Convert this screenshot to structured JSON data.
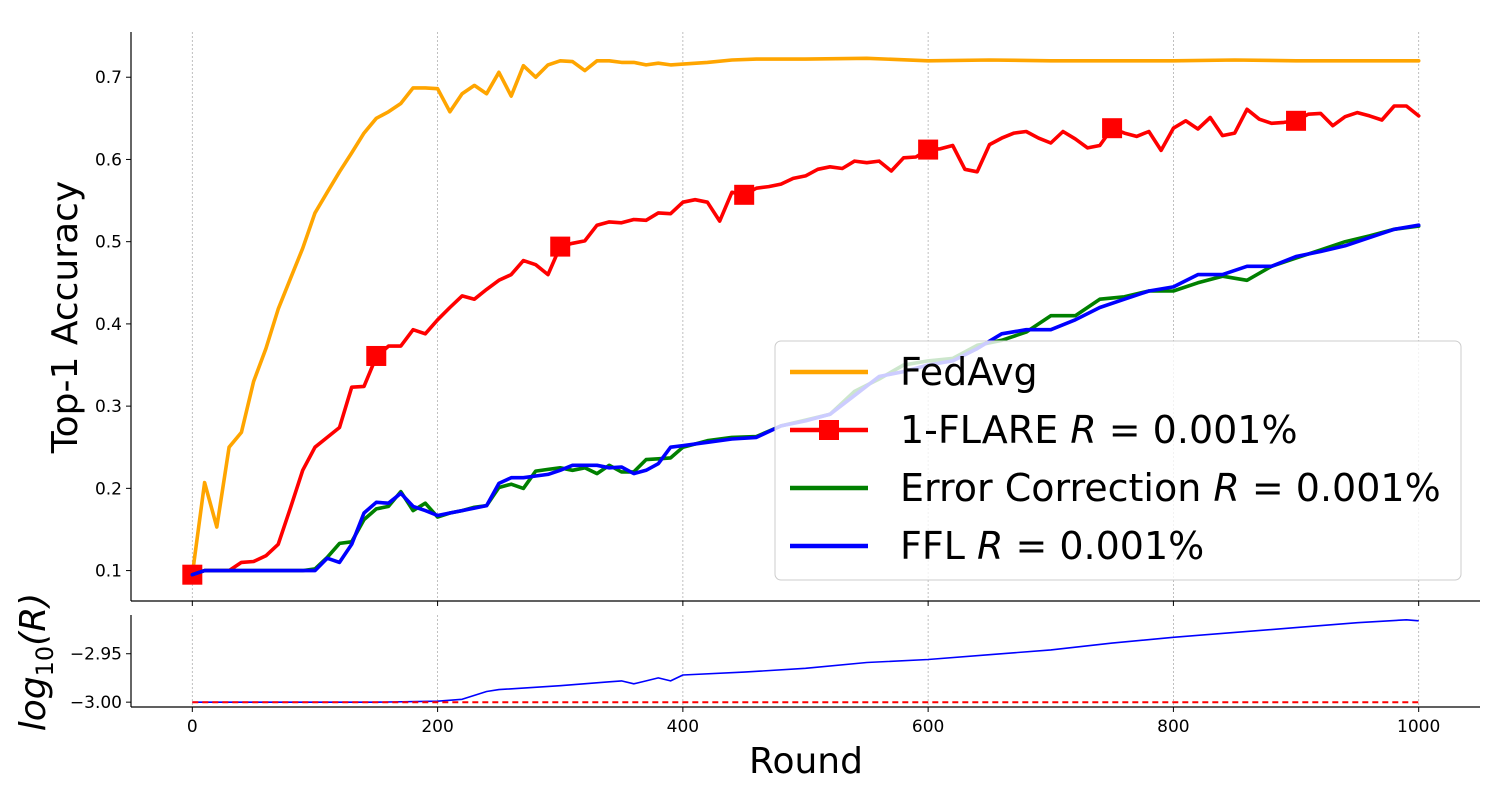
{
  "chart_data": [
    {
      "type": "line",
      "panel": "top",
      "title": "",
      "xlabel": "",
      "ylabel": "Top-1 Accuracy",
      "xlim": [
        -50,
        1050
      ],
      "ylim": [
        0.063,
        0.755
      ],
      "xticks": [
        0,
        200,
        400,
        600,
        800,
        1000
      ],
      "yticks": [
        0.1,
        0.2,
        0.3,
        0.4,
        0.5,
        0.6,
        0.7
      ],
      "ytick_labels": [
        "0.1",
        "0.2",
        "0.3",
        "0.4",
        "0.5",
        "0.6",
        "0.7"
      ],
      "grid": "vertical",
      "legend_position": "lower-right",
      "series": [
        {
          "name": "FedAvg",
          "color": "#FFA500",
          "x": [
            0,
            10,
            20,
            30,
            40,
            50,
            60,
            70,
            80,
            90,
            100,
            110,
            120,
            130,
            140,
            150,
            160,
            170,
            180,
            190,
            200,
            210,
            220,
            230,
            240,
            250,
            260,
            270,
            280,
            290,
            300,
            310,
            320,
            330,
            340,
            350,
            360,
            370,
            380,
            390,
            400,
            420,
            440,
            460,
            480,
            500,
            550,
            600,
            650,
            700,
            750,
            800,
            850,
            900,
            950,
            1000
          ],
          "values": [
            0.095,
            0.207,
            0.153,
            0.25,
            0.268,
            0.33,
            0.37,
            0.418,
            0.455,
            0.492,
            0.535,
            0.56,
            0.585,
            0.608,
            0.632,
            0.65,
            0.658,
            0.668,
            0.687,
            0.687,
            0.686,
            0.658,
            0.68,
            0.69,
            0.68,
            0.706,
            0.677,
            0.714,
            0.7,
            0.715,
            0.72,
            0.719,
            0.708,
            0.72,
            0.72,
            0.718,
            0.718,
            0.715,
            0.717,
            0.715,
            0.716,
            0.718,
            0.721,
            0.722,
            0.722,
            0.722,
            0.723,
            0.72,
            0.721,
            0.72,
            0.72,
            0.72,
            0.721,
            0.72,
            0.72,
            0.72
          ]
        },
        {
          "name": "1-FLARE $R = 0.001\\%$",
          "label_prefix": "1-FLARE ",
          "label_var": "R",
          "label_suffix": " = 0.001%",
          "color": "#FF0000",
          "marker": "square",
          "marker_x": [
            0,
            150,
            300,
            450,
            600,
            750,
            900
          ],
          "marker_values": [
            0.095,
            0.361,
            0.494,
            0.557,
            0.612,
            0.638,
            0.647
          ],
          "x": [
            0,
            10,
            20,
            30,
            40,
            50,
            60,
            70,
            80,
            90,
            100,
            110,
            120,
            130,
            140,
            150,
            160,
            170,
            180,
            190,
            200,
            210,
            220,
            230,
            240,
            250,
            260,
            270,
            280,
            290,
            300,
            310,
            320,
            330,
            340,
            350,
            360,
            370,
            380,
            390,
            400,
            410,
            420,
            430,
            440,
            450,
            460,
            470,
            480,
            490,
            500,
            510,
            520,
            530,
            540,
            550,
            560,
            570,
            580,
            590,
            600,
            610,
            620,
            630,
            640,
            650,
            660,
            670,
            680,
            690,
            700,
            710,
            720,
            730,
            740,
            750,
            760,
            770,
            780,
            790,
            800,
            810,
            820,
            830,
            840,
            850,
            860,
            870,
            880,
            890,
            900,
            910,
            920,
            930,
            940,
            950,
            960,
            970,
            980,
            990,
            1000
          ],
          "values": [
            0.095,
            0.1,
            0.1,
            0.1,
            0.11,
            0.111,
            0.118,
            0.132,
            0.176,
            0.222,
            0.25,
            0.262,
            0.274,
            0.323,
            0.324,
            0.36,
            0.373,
            0.373,
            0.393,
            0.388,
            0.405,
            0.42,
            0.434,
            0.43,
            0.442,
            0.453,
            0.46,
            0.477,
            0.472,
            0.46,
            0.494,
            0.498,
            0.501,
            0.52,
            0.524,
            0.523,
            0.527,
            0.526,
            0.535,
            0.534,
            0.548,
            0.551,
            0.548,
            0.525,
            0.56,
            0.557,
            0.565,
            0.567,
            0.57,
            0.577,
            0.58,
            0.588,
            0.591,
            0.589,
            0.598,
            0.596,
            0.598,
            0.586,
            0.602,
            0.603,
            0.612,
            0.613,
            0.617,
            0.588,
            0.585,
            0.618,
            0.626,
            0.632,
            0.634,
            0.626,
            0.62,
            0.634,
            0.625,
            0.614,
            0.617,
            0.638,
            0.632,
            0.628,
            0.634,
            0.611,
            0.638,
            0.647,
            0.637,
            0.651,
            0.629,
            0.632,
            0.661,
            0.649,
            0.644,
            0.645,
            0.647,
            0.655,
            0.656,
            0.641,
            0.652,
            0.657,
            0.653,
            0.648,
            0.665,
            0.665,
            0.653
          ]
        },
        {
          "name": "Error Correction $R = 0.001\\%$",
          "label_prefix": "Error Correction ",
          "label_var": "R",
          "label_suffix": " = 0.001%",
          "color": "#008000",
          "x": [
            0,
            10,
            20,
            30,
            40,
            50,
            60,
            70,
            80,
            90,
            100,
            110,
            120,
            130,
            140,
            150,
            160,
            170,
            180,
            190,
            200,
            210,
            220,
            230,
            240,
            250,
            260,
            270,
            280,
            290,
            300,
            310,
            320,
            330,
            340,
            350,
            360,
            370,
            380,
            390,
            400,
            420,
            440,
            460,
            480,
            500,
            520,
            540,
            560,
            580,
            600,
            620,
            640,
            660,
            680,
            700,
            720,
            740,
            760,
            780,
            800,
            820,
            840,
            860,
            880,
            900,
            920,
            940,
            960,
            980,
            1000
          ],
          "values": [
            0.095,
            0.1,
            0.1,
            0.1,
            0.1,
            0.1,
            0.1,
            0.1,
            0.1,
            0.1,
            0.102,
            0.116,
            0.133,
            0.135,
            0.162,
            0.175,
            0.178,
            0.196,
            0.173,
            0.182,
            0.165,
            0.17,
            0.173,
            0.177,
            0.179,
            0.201,
            0.205,
            0.2,
            0.221,
            0.223,
            0.225,
            0.222,
            0.225,
            0.218,
            0.228,
            0.22,
            0.22,
            0.235,
            0.236,
            0.237,
            0.25,
            0.258,
            0.262,
            0.263,
            0.276,
            0.283,
            0.29,
            0.318,
            0.333,
            0.35,
            0.355,
            0.358,
            0.374,
            0.38,
            0.39,
            0.41,
            0.41,
            0.43,
            0.433,
            0.44,
            0.44,
            0.45,
            0.458,
            0.453,
            0.47,
            0.48,
            0.49,
            0.5,
            0.507,
            0.515,
            0.519
          ]
        },
        {
          "name": "FFL $R = 0.001\\%$",
          "label_prefix": "FFL ",
          "label_var": "R",
          "label_suffix": " = 0.001%",
          "color": "#0000FF",
          "x": [
            0,
            10,
            20,
            30,
            40,
            50,
            60,
            70,
            80,
            90,
            100,
            110,
            120,
            130,
            140,
            150,
            160,
            170,
            180,
            190,
            200,
            210,
            220,
            230,
            240,
            250,
            260,
            270,
            280,
            290,
            300,
            310,
            320,
            330,
            340,
            350,
            360,
            370,
            380,
            390,
            400,
            420,
            440,
            460,
            480,
            500,
            520,
            540,
            560,
            580,
            600,
            620,
            640,
            660,
            680,
            700,
            720,
            740,
            760,
            780,
            800,
            820,
            840,
            860,
            880,
            900,
            920,
            940,
            960,
            980,
            1000
          ],
          "values": [
            0.095,
            0.1,
            0.1,
            0.1,
            0.1,
            0.1,
            0.1,
            0.1,
            0.1,
            0.1,
            0.1,
            0.115,
            0.11,
            0.132,
            0.17,
            0.183,
            0.182,
            0.194,
            0.178,
            0.173,
            0.167,
            0.17,
            0.173,
            0.176,
            0.179,
            0.206,
            0.213,
            0.213,
            0.215,
            0.217,
            0.222,
            0.228,
            0.228,
            0.228,
            0.225,
            0.226,
            0.218,
            0.222,
            0.23,
            0.25,
            0.252,
            0.256,
            0.26,
            0.262,
            0.276,
            0.282,
            0.29,
            0.313,
            0.336,
            0.342,
            0.35,
            0.355,
            0.37,
            0.388,
            0.393,
            0.393,
            0.405,
            0.42,
            0.43,
            0.44,
            0.445,
            0.46,
            0.46,
            0.47,
            0.47,
            0.482,
            0.488,
            0.495,
            0.505,
            0.515,
            0.52
          ]
        }
      ]
    },
    {
      "type": "line",
      "panel": "bottom",
      "title": "",
      "xlabel": "Round",
      "ylabel": "log10(R)",
      "ylabel_base": "log",
      "ylabel_sub": "10",
      "ylabel_arg": "(R)",
      "xlim": [
        -50,
        1050
      ],
      "ylim": [
        -3.005,
        -2.91
      ],
      "xticks": [
        0,
        200,
        400,
        600,
        800,
        1000
      ],
      "xtick_labels": [
        "0",
        "200",
        "400",
        "600",
        "800",
        "1000"
      ],
      "yticks": [
        -2.95,
        -3.0
      ],
      "ytick_labels": [
        "−2.95",
        "−3.00"
      ],
      "grid": "vertical",
      "series": [
        {
          "color": "#0000FF",
          "x": [
            0,
            50,
            100,
            150,
            200,
            220,
            240,
            250,
            300,
            340,
            350,
            360,
            370,
            380,
            390,
            400,
            450,
            500,
            550,
            600,
            650,
            700,
            750,
            800,
            850,
            900,
            950,
            990,
            1000
          ],
          "values": [
            -3.0,
            -3.0,
            -3.0,
            -3.0,
            -2.999,
            -2.997,
            -2.989,
            -2.987,
            -2.983,
            -2.979,
            -2.978,
            -2.981,
            -2.978,
            -2.975,
            -2.978,
            -2.972,
            -2.969,
            -2.965,
            -2.959,
            -2.956,
            -2.951,
            -2.946,
            -2.939,
            -2.933,
            -2.928,
            -2.923,
            -2.918,
            -2.915,
            -2.916
          ]
        },
        {
          "color": "#FF0000",
          "style": "dashed",
          "x": [
            0,
            1000
          ],
          "values": [
            -3.0,
            -3.0
          ]
        }
      ]
    }
  ]
}
